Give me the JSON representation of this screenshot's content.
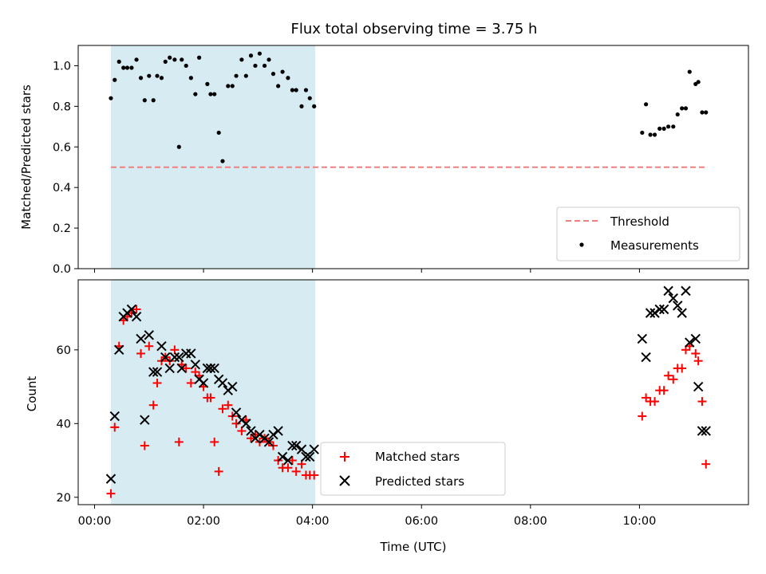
{
  "chart_data": [
    {
      "type": "scatter",
      "title": "Flux total observing time = 3.75 h",
      "xlabel": "",
      "ylabel": "Matched/Predicted stars",
      "ylim": [
        0.0,
        1.1
      ],
      "yticks": [
        0.0,
        0.2,
        0.4,
        0.6,
        0.8,
        1.0
      ],
      "shaded_span": [
        0.3,
        4.05
      ],
      "threshold": {
        "name": "Threshold",
        "y": 0.5,
        "x_range": [
          0.3,
          11.2
        ],
        "color": "#f08080"
      },
      "legend": [
        "Threshold",
        "Measurements"
      ],
      "legend_position": "lower-right",
      "series": [
        {
          "name": "Measurements",
          "marker": "dot",
          "color": "#000000",
          "x": [
            0.3,
            0.37,
            0.45,
            0.53,
            0.6,
            0.68,
            0.77,
            0.85,
            0.92,
            1.0,
            1.08,
            1.15,
            1.23,
            1.3,
            1.38,
            1.47,
            1.55,
            1.6,
            1.68,
            1.77,
            1.85,
            1.92,
            2.07,
            2.13,
            2.2,
            2.28,
            2.35,
            2.45,
            2.53,
            2.6,
            2.7,
            2.78,
            2.87,
            2.95,
            3.03,
            3.12,
            3.2,
            3.28,
            3.37,
            3.45,
            3.55,
            3.63,
            3.7,
            3.8,
            3.88,
            3.95,
            4.03,
            10.05,
            10.12,
            10.2,
            10.28,
            10.37,
            10.45,
            10.53,
            10.62,
            10.7,
            10.78,
            10.85,
            10.92,
            11.03,
            11.08,
            11.15,
            11.22
          ],
          "y": [
            0.84,
            0.93,
            1.02,
            0.99,
            0.99,
            0.99,
            1.03,
            0.94,
            0.83,
            0.95,
            0.83,
            0.95,
            0.94,
            1.02,
            1.04,
            1.03,
            0.6,
            1.03,
            1.0,
            0.94,
            0.86,
            1.04,
            0.91,
            0.86,
            0.86,
            0.67,
            0.53,
            0.9,
            0.9,
            0.95,
            1.03,
            0.95,
            1.05,
            1.0,
            1.06,
            1.0,
            1.03,
            0.96,
            0.9,
            0.97,
            0.94,
            0.88,
            0.88,
            0.8,
            0.88,
            0.84,
            0.8,
            0.67,
            0.81,
            0.66,
            0.66,
            0.69,
            0.69,
            0.7,
            0.7,
            0.76,
            0.79,
            0.79,
            0.97,
            0.91,
            0.92,
            0.77,
            0.77
          ]
        }
      ]
    },
    {
      "type": "scatter",
      "title": "",
      "xlabel": "Time (UTC)",
      "ylabel": "Count",
      "ylim": [
        18,
        79
      ],
      "yticks": [
        20,
        40,
        60
      ],
      "shaded_span": [
        0.3,
        4.05
      ],
      "xlim": [
        -0.3,
        12.0
      ],
      "xticks": [
        0,
        2,
        4,
        6,
        8,
        10
      ],
      "xtick_labels": [
        "00:00",
        "02:00",
        "04:00",
        "06:00",
        "08:00",
        "10:00"
      ],
      "legend": [
        "Matched stars",
        "Predicted stars"
      ],
      "legend_position": "lower-center",
      "series": [
        {
          "name": "Matched stars",
          "marker": "plus",
          "color": "#ff0000",
          "x": [
            0.3,
            0.37,
            0.45,
            0.53,
            0.6,
            0.68,
            0.77,
            0.85,
            0.92,
            1.0,
            1.08,
            1.15,
            1.23,
            1.3,
            1.38,
            1.47,
            1.55,
            1.6,
            1.68,
            1.77,
            1.85,
            1.92,
            2.0,
            2.07,
            2.13,
            2.2,
            2.28,
            2.35,
            2.45,
            2.53,
            2.6,
            2.7,
            2.78,
            2.87,
            2.95,
            3.03,
            3.12,
            3.2,
            3.28,
            3.37,
            3.45,
            3.55,
            3.63,
            3.7,
            3.8,
            3.88,
            3.95,
            4.03,
            10.05,
            10.12,
            10.2,
            10.28,
            10.37,
            10.45,
            10.53,
            10.62,
            10.7,
            10.78,
            10.85,
            10.92,
            11.03,
            11.08,
            11.15,
            11.22
          ],
          "y": [
            21,
            39,
            61,
            68,
            69,
            70,
            71,
            59,
            34,
            61,
            45,
            51,
            57,
            58,
            57,
            60,
            35,
            56,
            55,
            51,
            54,
            53,
            50,
            47,
            47,
            35,
            27,
            44,
            45,
            42,
            40,
            38,
            41,
            36,
            37,
            35,
            36,
            35,
            34,
            30,
            28,
            28,
            30,
            27,
            29,
            26,
            26,
            26,
            42,
            47,
            46,
            46,
            49,
            49,
            53,
            52,
            55,
            55,
            60,
            61,
            59,
            57,
            46,
            29
          ]
        },
        {
          "name": "Predicted stars",
          "marker": "x",
          "color": "#000000",
          "x": [
            0.3,
            0.37,
            0.45,
            0.53,
            0.6,
            0.68,
            0.77,
            0.85,
            0.92,
            1.0,
            1.08,
            1.15,
            1.23,
            1.3,
            1.38,
            1.47,
            1.55,
            1.6,
            1.68,
            1.77,
            1.85,
            1.92,
            2.0,
            2.07,
            2.13,
            2.2,
            2.28,
            2.35,
            2.45,
            2.53,
            2.6,
            2.7,
            2.78,
            2.87,
            2.95,
            3.03,
            3.12,
            3.2,
            3.28,
            3.37,
            3.45,
            3.55,
            3.63,
            3.7,
            3.8,
            3.88,
            3.95,
            4.03,
            10.05,
            10.12,
            10.2,
            10.28,
            10.37,
            10.45,
            10.53,
            10.62,
            10.7,
            10.78,
            10.85,
            10.92,
            11.03,
            11.08,
            11.15,
            11.22
          ],
          "y": [
            25,
            42,
            60,
            69,
            70,
            71,
            69,
            63,
            41,
            64,
            54,
            54,
            61,
            58,
            55,
            58,
            58,
            55,
            59,
            59,
            56,
            52,
            51,
            55,
            55,
            55,
            52,
            51,
            49,
            50,
            43,
            41,
            40,
            38,
            36,
            37,
            36,
            35,
            37,
            38,
            31,
            30,
            34,
            34,
            33,
            31,
            31,
            33,
            63,
            58,
            70,
            70,
            71,
            71,
            76,
            74,
            72,
            70,
            76,
            62,
            63,
            50,
            38,
            38
          ]
        }
      ]
    }
  ]
}
